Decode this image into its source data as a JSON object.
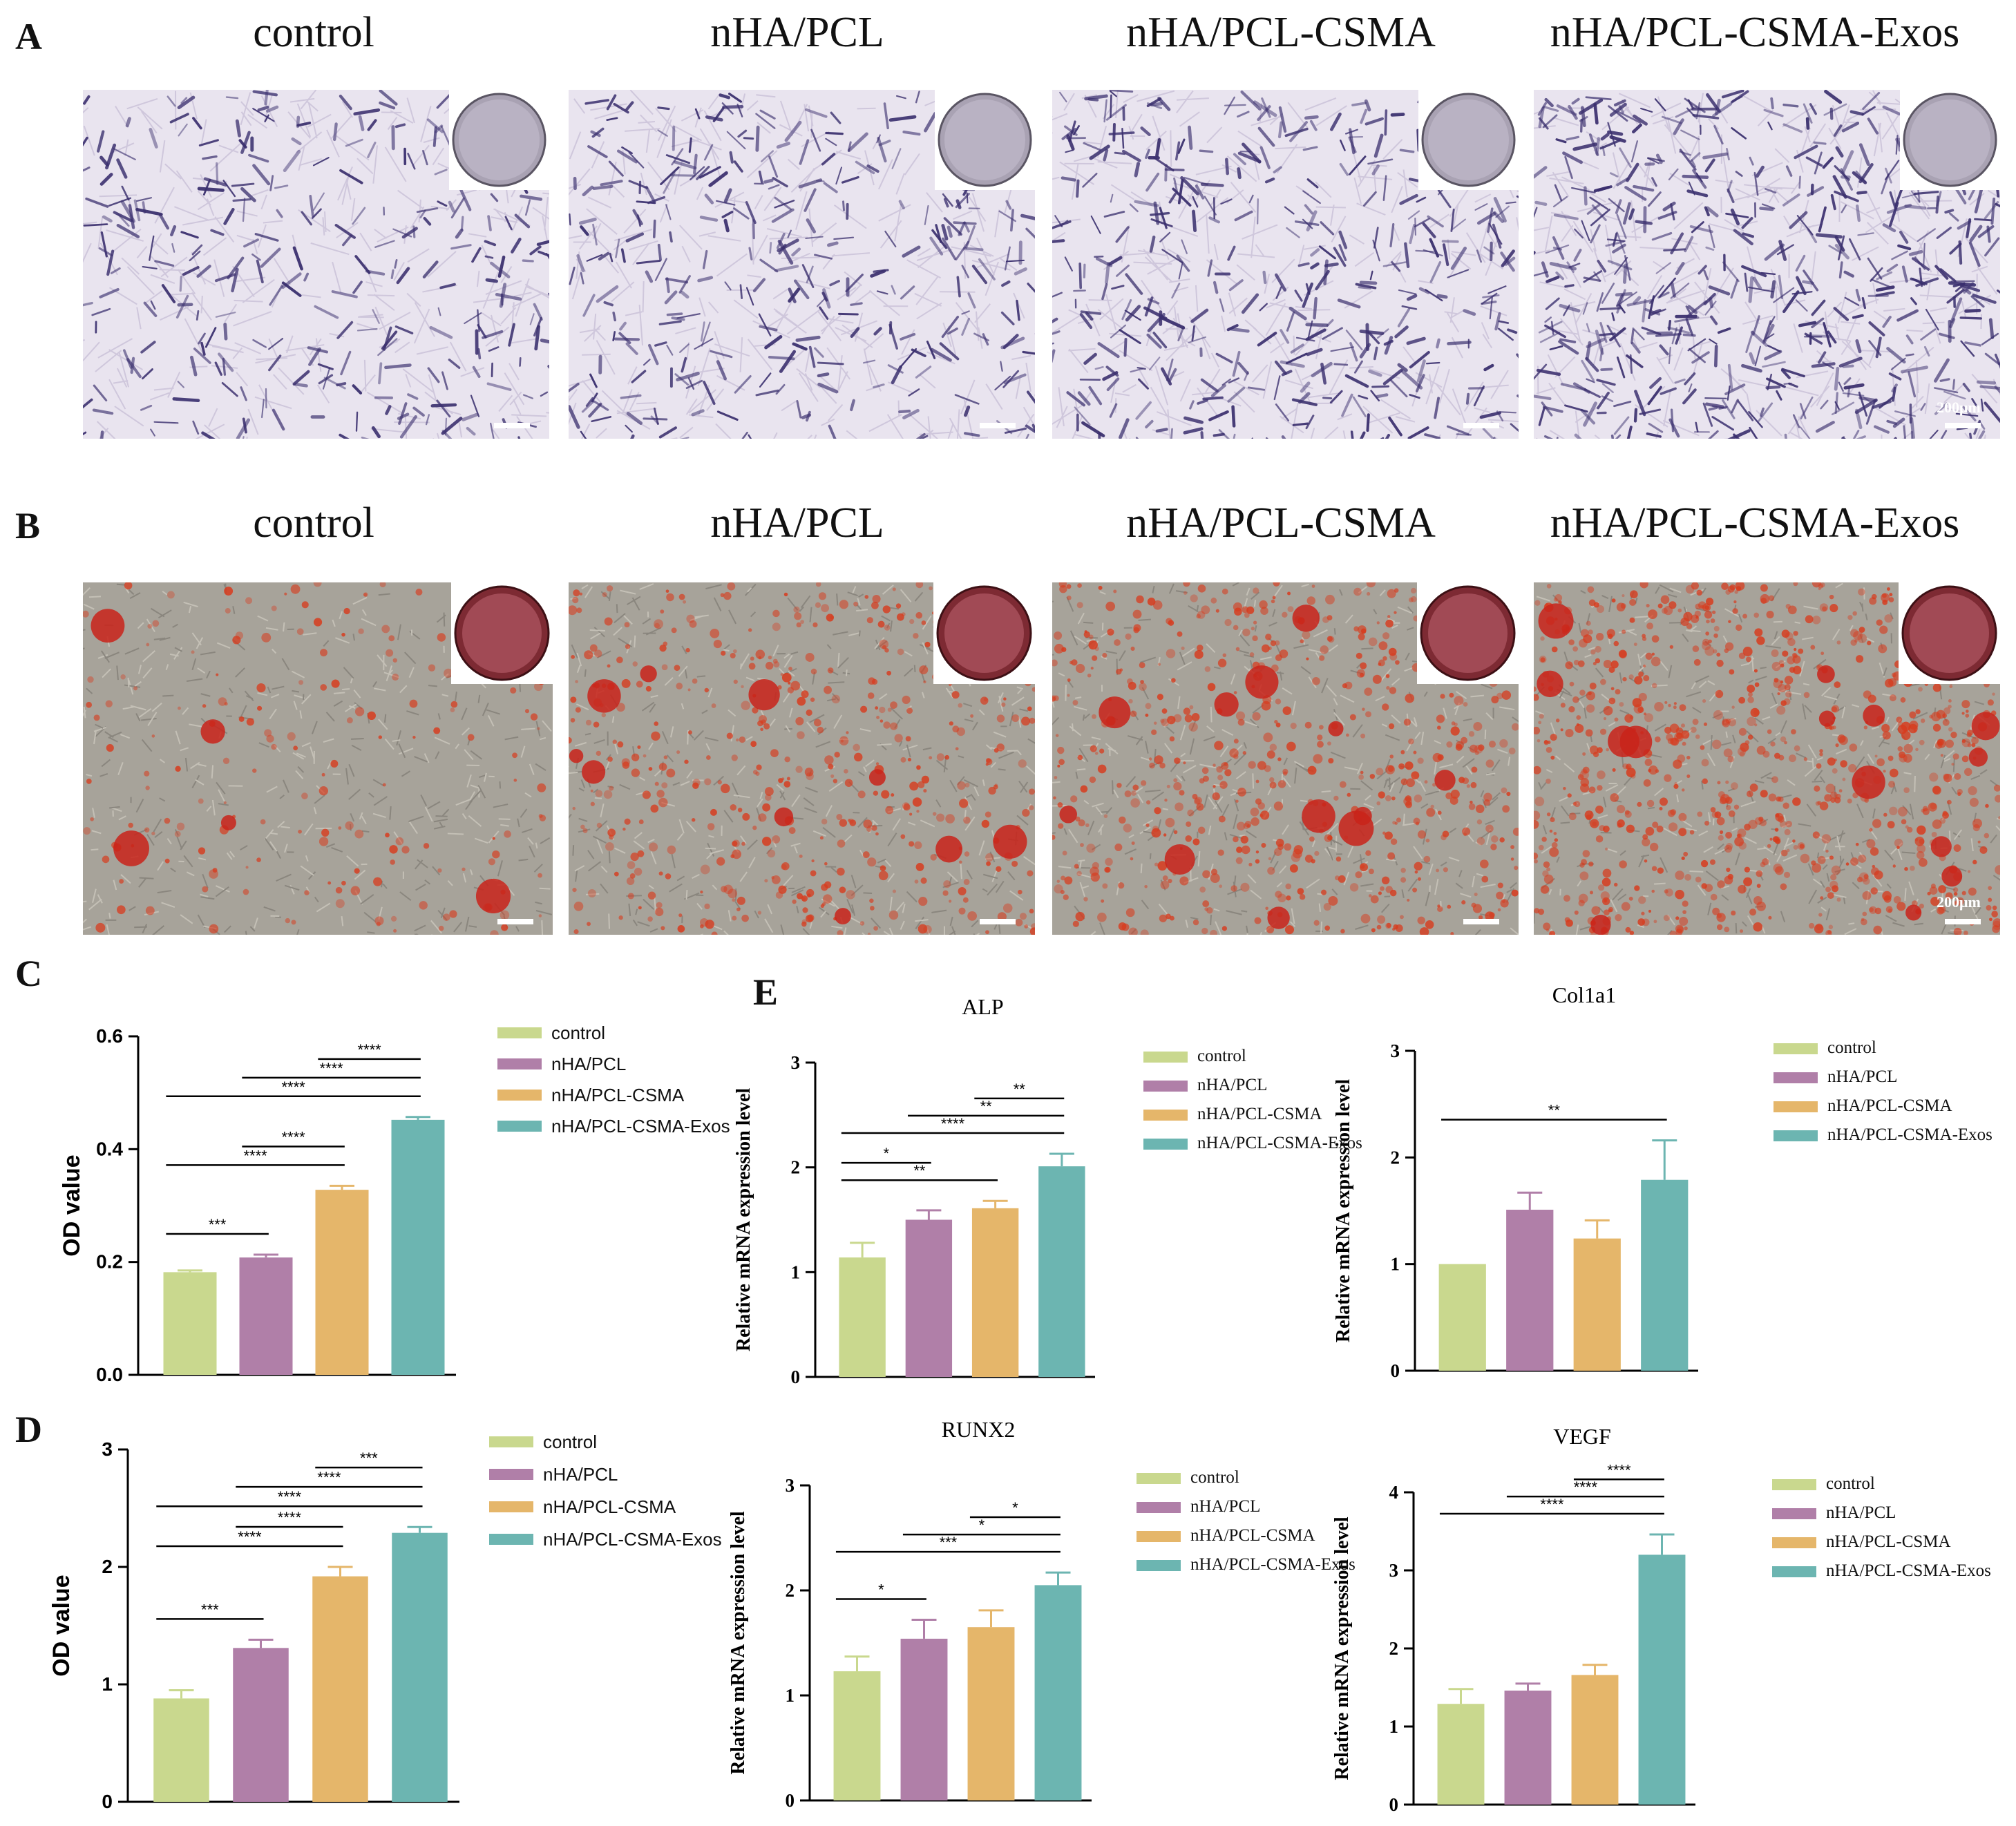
{
  "colors": {
    "control": "#c9d88e",
    "nHA/PCL": "#b07fa8",
    "nHA/PCL-CSMA": "#e5b66a",
    "nHA/PCL-CSMA-Exos": "#6cb5b1",
    "alp_stain": "#3a2f6e",
    "ars_stain": "#d83a1c"
  },
  "panel_A": {
    "letter": "A",
    "titles": [
      "control",
      "nHA/PCL",
      "nHA/PCL-CSMA",
      "nHA/PCL-CSMA-Exos"
    ],
    "scale_label": "200μm",
    "stain_density": [
      0.35,
      0.45,
      0.6,
      0.95
    ]
  },
  "panel_B": {
    "letter": "B",
    "titles": [
      "control",
      "nHA/PCL",
      "nHA/PCL-CSMA",
      "nHA/PCL-CSMA-Exos"
    ],
    "scale_label": "200μm",
    "stain_density": [
      0.15,
      0.5,
      0.65,
      0.95
    ]
  },
  "legend_labels": [
    "control",
    "nHA/PCL",
    "nHA/PCL-CSMA",
    "nHA/PCL-CSMA-Exos"
  ],
  "chart_data": [
    {
      "id": "C",
      "letter": "C",
      "type": "bar",
      "title": "",
      "xlabel": "",
      "ylabel": "OD value",
      "categories": [
        "control",
        "nHA/PCL",
        "nHA/PCL-CSMA",
        "nHA/PCL-CSMA-Exos"
      ],
      "values": [
        0.182,
        0.208,
        0.328,
        0.452
      ],
      "errors": [
        0.003,
        0.005,
        0.007,
        0.005
      ],
      "ylim": [
        0,
        0.6
      ],
      "yticks": [
        "0.0",
        "0.2",
        "0.4",
        "0.6"
      ],
      "significance": [
        {
          "from": 0,
          "to": 3,
          "label": "****"
        },
        {
          "from": 1,
          "to": 3,
          "label": "****"
        },
        {
          "from": 2,
          "to": 3,
          "label": "****"
        },
        {
          "from": 0,
          "to": 2,
          "label": "****"
        },
        {
          "from": 1,
          "to": 2,
          "label": "****"
        },
        {
          "from": 0,
          "to": 1,
          "label": "***"
        }
      ]
    },
    {
      "id": "D",
      "letter": "D",
      "type": "bar",
      "title": "",
      "xlabel": "",
      "ylabel": "OD value",
      "categories": [
        "control",
        "nHA/PCL",
        "nHA/PCL-CSMA",
        "nHA/PCL-CSMA-Exos"
      ],
      "values": [
        0.88,
        1.31,
        1.92,
        2.29
      ],
      "errors": [
        0.07,
        0.07,
        0.08,
        0.05
      ],
      "ylim": [
        0,
        3
      ],
      "yticks": [
        "0",
        "1",
        "2",
        "3"
      ],
      "significance": [
        {
          "from": 0,
          "to": 3,
          "label": "****"
        },
        {
          "from": 1,
          "to": 3,
          "label": "****"
        },
        {
          "from": 2,
          "to": 3,
          "label": "***"
        },
        {
          "from": 0,
          "to": 2,
          "label": "****"
        },
        {
          "from": 1,
          "to": 2,
          "label": "****"
        },
        {
          "from": 0,
          "to": 1,
          "label": "***"
        }
      ]
    },
    {
      "id": "E1",
      "letter": "E",
      "type": "bar",
      "title": "ALP",
      "xlabel": "",
      "ylabel": "Relative mRNA expression level",
      "categories": [
        "control",
        "nHA/PCL",
        "nHA/PCL-CSMA",
        "nHA/PCL-CSMA-Exos"
      ],
      "values": [
        1.14,
        1.5,
        1.61,
        2.01
      ],
      "errors": [
        0.14,
        0.09,
        0.07,
        0.12
      ],
      "ylim": [
        0,
        3
      ],
      "yticks": [
        "0",
        "1",
        "2",
        "3"
      ],
      "significance": [
        {
          "from": 0,
          "to": 3,
          "label": "****"
        },
        {
          "from": 1,
          "to": 3,
          "label": "**"
        },
        {
          "from": 2,
          "to": 3,
          "label": "**"
        },
        {
          "from": 0,
          "to": 2,
          "label": "**"
        },
        {
          "from": 0,
          "to": 1,
          "label": "*"
        }
      ]
    },
    {
      "id": "E2",
      "letter": "",
      "type": "bar",
      "title": "Col1a1",
      "xlabel": "",
      "ylabel": "Relative mRNA expression level",
      "categories": [
        "control",
        "nHA/PCL",
        "nHA/PCL-CSMA",
        "nHA/PCL-CSMA-Exos"
      ],
      "values": [
        1.0,
        1.51,
        1.24,
        1.79
      ],
      "errors": [
        0.0,
        0.16,
        0.17,
        0.37
      ],
      "ylim": [
        0,
        3
      ],
      "yticks": [
        "0",
        "1",
        "2",
        "3"
      ],
      "significance": [
        {
          "from": 0,
          "to": 3,
          "label": "**"
        }
      ]
    },
    {
      "id": "E3",
      "letter": "",
      "type": "bar",
      "title": "RUNX2",
      "xlabel": "",
      "ylabel": "Relative mRNA expression level",
      "categories": [
        "control",
        "nHA/PCL",
        "nHA/PCL-CSMA",
        "nHA/PCL-CSMA-Exos"
      ],
      "values": [
        1.23,
        1.54,
        1.65,
        2.05
      ],
      "errors": [
        0.14,
        0.18,
        0.16,
        0.12
      ],
      "ylim": [
        0,
        3
      ],
      "yticks": [
        "0",
        "1",
        "2",
        "3"
      ],
      "significance": [
        {
          "from": 0,
          "to": 3,
          "label": "***"
        },
        {
          "from": 1,
          "to": 3,
          "label": "*"
        },
        {
          "from": 2,
          "to": 3,
          "label": "*"
        },
        {
          "from": 0,
          "to": 1,
          "label": "*"
        }
      ]
    },
    {
      "id": "E4",
      "letter": "",
      "type": "bar",
      "title": "VEGF",
      "xlabel": "",
      "ylabel": "Relative mRNA expression level",
      "categories": [
        "control",
        "nHA/PCL",
        "nHA/PCL-CSMA",
        "nHA/PCL-CSMA-Exos"
      ],
      "values": [
        1.29,
        1.46,
        1.66,
        3.2
      ],
      "errors": [
        0.19,
        0.09,
        0.13,
        0.26
      ],
      "ylim": [
        0,
        4
      ],
      "yticks": [
        "0",
        "1",
        "2",
        "3",
        "4"
      ],
      "significance": [
        {
          "from": 0,
          "to": 3,
          "label": "****"
        },
        {
          "from": 1,
          "to": 3,
          "label": "****"
        },
        {
          "from": 2,
          "to": 3,
          "label": "****"
        }
      ]
    }
  ]
}
